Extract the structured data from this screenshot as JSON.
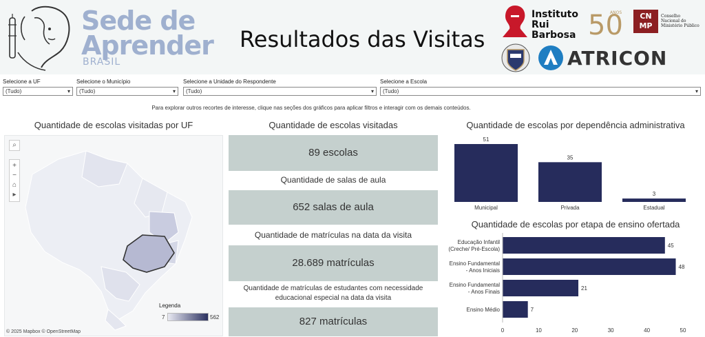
{
  "header": {
    "logo_line1": "Sede de",
    "logo_line2": "Aprender",
    "logo_sub": "BRASIL",
    "title": "Resultados das Visitas",
    "partners": {
      "irb_name1": "Instituto",
      "irb_name2": "Rui Barbosa",
      "anos": "ANOS",
      "cnmp_abbr": "CN MP",
      "cnmp_text1": "Conselho",
      "cnmp_text2": "Nacional do",
      "cnmp_text3": "Ministério Público",
      "atricon": "ATRICON"
    }
  },
  "filters": [
    {
      "label": "Selecione a UF",
      "value": "(Tudo)"
    },
    {
      "label": "Selecione o Município",
      "value": "(Tudo)"
    },
    {
      "label": "Selecione a Unidade do Respondente",
      "value": "(Tudo)"
    },
    {
      "label": "Selecione a Escola",
      "value": "(Tudo)"
    }
  ],
  "hint": "Para explorar outros recortes de interesse, clique nas seções dos gráficos para aplicar filtros e interagir com os demais conteúdos.",
  "map": {
    "title": "Quantidade de escolas visitadas por UF",
    "legend_title": "Legenda",
    "legend_min": "7",
    "legend_max": "562",
    "attribution": "© 2025 Mapbox  © OpenStreetMap",
    "colors": {
      "low": "#e8e9f2",
      "high": "#2b3160"
    }
  },
  "kpis": [
    {
      "label": "Quantidade de escolas visitadas",
      "value": "89 escolas"
    },
    {
      "label": "Quantidade de salas de aula",
      "value": "652 salas de aula"
    },
    {
      "label": "Quantidade de matrículas na data da visita",
      "value": "28.689 matrículas"
    },
    {
      "label": "Quantidade de matrículas de estudantes com necessidade educacional especial na data da visita",
      "value": "827 matrículas"
    }
  ],
  "chart_data": [
    {
      "type": "bar",
      "title": "Quantidade de escolas por dependência administrativa",
      "categories": [
        "Municipal",
        "Privada",
        "Estadual"
      ],
      "values": [
        51,
        35,
        3
      ],
      "color": "#262c5c"
    },
    {
      "type": "bar",
      "orientation": "horizontal",
      "title": "Quantidade de escolas por etapa de ensino ofertada",
      "categories": [
        [
          "Educação Infantil",
          "(Creche/ Pré-Escola)"
        ],
        [
          "Ensino Fundamental",
          "- Anos Iniciais"
        ],
        [
          "Ensino Fundamental",
          "- Anos Finais"
        ],
        [
          "Ensino Médio"
        ]
      ],
      "values": [
        45,
        48,
        21,
        7
      ],
      "xlim": [
        0,
        50
      ],
      "ticks": [
        "0",
        "10",
        "20",
        "30",
        "40",
        "50"
      ],
      "color": "#262c5c"
    }
  ]
}
